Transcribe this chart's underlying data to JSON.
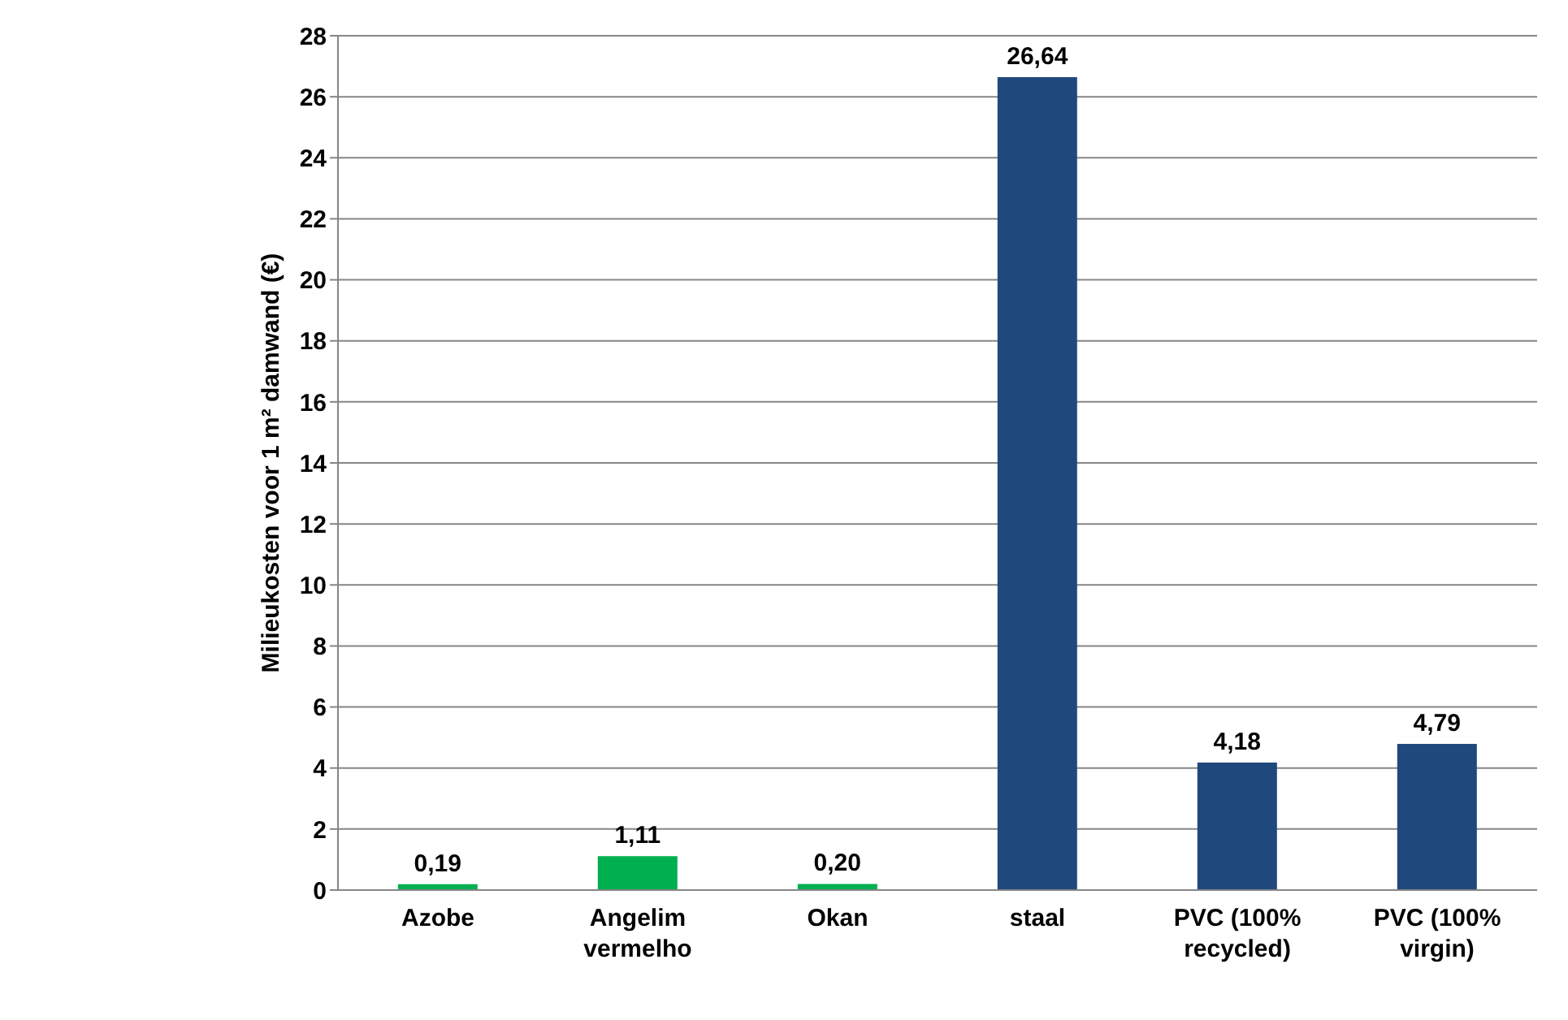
{
  "chart_data": {
    "type": "bar",
    "ylabel": "Milieukosten voor 1 m² damwand (€)",
    "categories": [
      "Azobe",
      "Angelim vermelho",
      "Okan",
      "staal",
      "PVC (100% recycled)",
      "PVC (100% virgin)"
    ],
    "values": [
      0.19,
      1.11,
      0.2,
      26.64,
      4.18,
      4.79
    ],
    "colors": [
      "#00b050",
      "#00b050",
      "#00b050",
      "#1f497d",
      "#1f497d",
      "#1f497d"
    ],
    "value_labels": [
      "0,19",
      "1,11",
      "0,20",
      "26,64",
      "4,18",
      "4,79"
    ],
    "ylim": [
      0,
      28
    ],
    "yticks": [
      0,
      2,
      4,
      6,
      8,
      10,
      12,
      14,
      16,
      18,
      20,
      22,
      24,
      26,
      28
    ],
    "grid": "y"
  }
}
